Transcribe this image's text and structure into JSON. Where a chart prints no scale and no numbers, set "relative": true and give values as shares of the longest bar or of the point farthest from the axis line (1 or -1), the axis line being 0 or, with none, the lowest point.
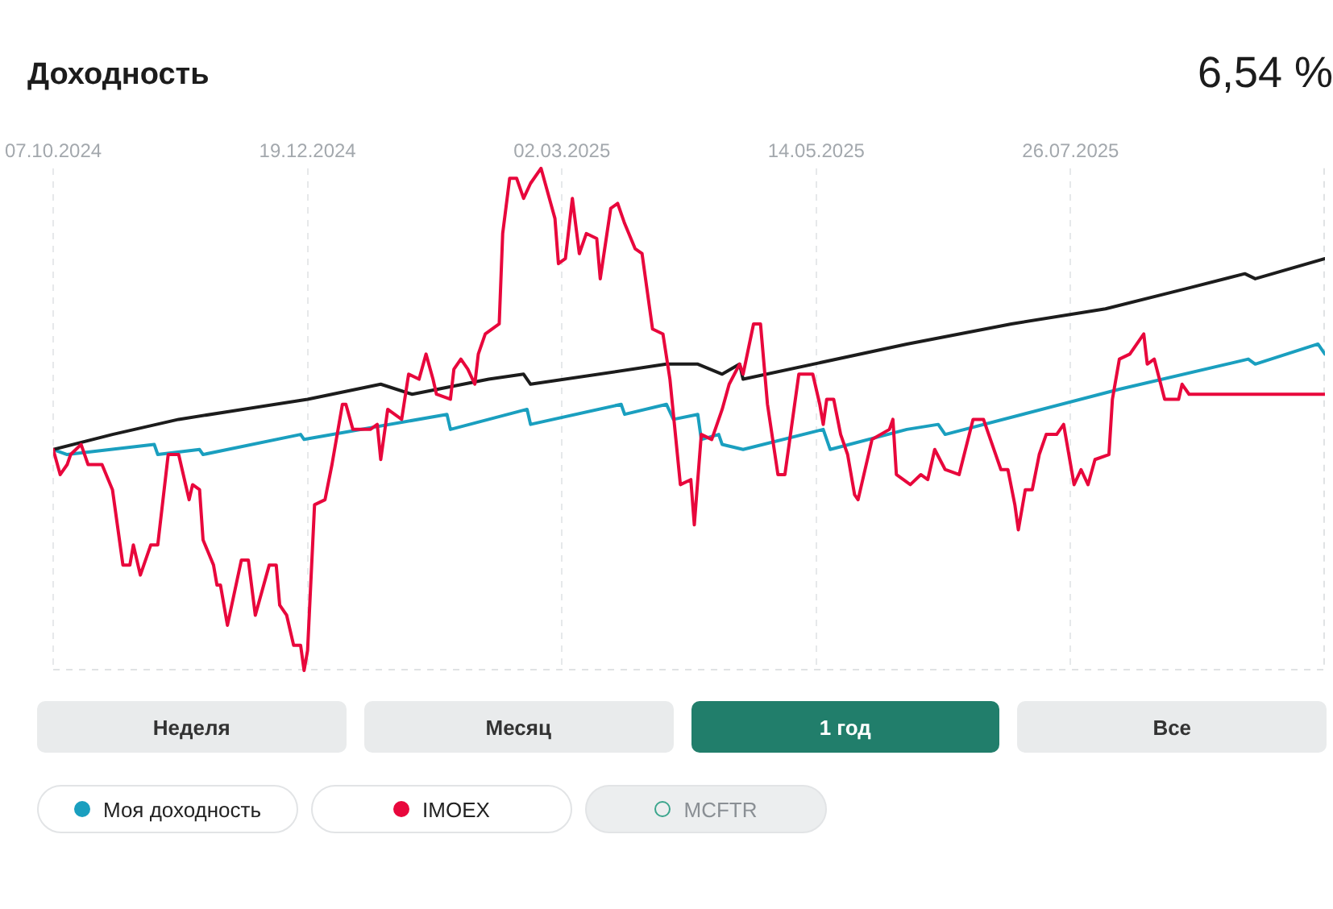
{
  "chart_data": {
    "type": "line",
    "title": "Доходность",
    "subtitle": "6,54 %",
    "relative": true,
    "grid": "x",
    "legend": "bottom",
    "marker": "none",
    "line_style": "solid",
    "xlim": [
      "2024-10-07",
      "2025-10-07"
    ],
    "xticks": [
      {
        "value": "2024-10-07",
        "label": "07.10.2024"
      },
      {
        "value": "2024-12-19",
        "label": "19.12.2024"
      },
      {
        "value": "2025-03-02",
        "label": "02.03.2025"
      },
      {
        "value": "2025-05-14",
        "label": "14.05.2025"
      },
      {
        "value": "2025-07-26",
        "label": "26.07.2025"
      }
    ],
    "annotations": [
      "Неделя",
      "Месяц",
      "1 год",
      "Все",
      "MCFTR"
    ],
    "series": [
      {
        "name": "Моя доходность",
        "color": "#1a9fbf",
        "x": [
          "2024-10-07",
          "2024-10-11",
          "2024-11-05",
          "2024-11-06",
          "2024-11-18",
          "2024-11-19",
          "2024-12-17",
          "2024-12-18",
          "2025-01-28",
          "2025-01-29",
          "2025-02-09",
          "2025-02-20",
          "2025-02-21",
          "2025-03-19",
          "2025-03-20",
          "2025-04-01",
          "2025-04-03",
          "2025-04-10",
          "2025-04-11",
          "2025-04-16",
          "2025-04-17",
          "2025-04-23",
          "2025-05-16",
          "2025-05-18",
          "2025-06-09",
          "2025-06-18",
          "2025-06-20",
          "2025-08-09",
          "2025-09-15",
          "2025-09-17",
          "2025-10-05",
          "2025-10-07"
        ],
        "values": [
          0.44,
          0.43,
          0.45,
          0.43,
          0.44,
          0.43,
          0.47,
          0.46,
          0.51,
          0.48,
          0.5,
          0.52,
          0.49,
          0.53,
          0.51,
          0.53,
          0.5,
          0.51,
          0.46,
          0.47,
          0.45,
          0.44,
          0.48,
          0.44,
          0.48,
          0.49,
          0.47,
          0.56,
          0.62,
          0.61,
          0.65,
          0.63
        ]
      },
      {
        "color": "#1c1c1c",
        "x": [
          "2024-10-07",
          "2024-10-24",
          "2024-11-12",
          "2024-12-19",
          "2025-01-09",
          "2025-01-18",
          "2025-02-09",
          "2025-02-19",
          "2025-02-21",
          "2025-04-01",
          "2025-04-10",
          "2025-04-17",
          "2025-04-22",
          "2025-04-23",
          "2025-06-09",
          "2025-07-09",
          "2025-08-05",
          "2025-08-28",
          "2025-09-14",
          "2025-09-17",
          "2025-10-07"
        ],
        "values": [
          0.44,
          0.47,
          0.5,
          0.54,
          0.57,
          0.55,
          0.58,
          0.59,
          0.57,
          0.61,
          0.61,
          0.59,
          0.61,
          0.58,
          0.65,
          0.69,
          0.72,
          0.76,
          0.79,
          0.78,
          0.82
        ]
      },
      {
        "name": "IMOEX",
        "color": "#e8073c",
        "x": [
          "2024-10-07",
          "2024-10-09",
          "2024-10-11",
          "2024-10-12",
          "2024-10-15",
          "2024-10-17",
          "2024-10-21",
          "2024-10-24",
          "2024-10-27",
          "2024-10-29",
          "2024-10-30",
          "2024-11-01",
          "2024-11-04",
          "2024-11-06",
          "2024-11-09",
          "2024-11-12",
          "2024-11-13",
          "2024-11-15",
          "2024-11-16",
          "2024-11-18",
          "2024-11-19",
          "2024-11-22",
          "2024-11-23",
          "2024-11-24",
          "2024-11-26",
          "2024-11-30",
          "2024-12-02",
          "2024-12-04",
          "2024-12-08",
          "2024-12-10",
          "2024-12-11",
          "2024-12-13",
          "2024-12-15",
          "2024-12-17",
          "2024-12-18",
          "2024-12-19",
          "2024-12-21",
          "2024-12-24",
          "2024-12-26",
          "2024-12-29",
          "2024-12-30",
          "2025-01-01",
          "2025-01-06",
          "2025-01-08",
          "2025-01-09",
          "2025-01-11",
          "2025-01-15",
          "2025-01-17",
          "2025-01-20",
          "2025-01-22",
          "2025-01-24",
          "2025-01-25",
          "2025-01-29",
          "2025-01-30",
          "2025-02-01",
          "2025-02-03",
          "2025-02-05",
          "2025-02-06",
          "2025-02-08",
          "2025-02-12",
          "2025-02-13",
          "2025-02-15",
          "2025-02-17",
          "2025-02-19",
          "2025-02-21",
          "2025-02-24",
          "2025-02-28",
          "2025-03-01",
          "2025-03-03",
          "2025-03-05",
          "2025-03-07",
          "2025-03-09",
          "2025-03-12",
          "2025-03-13",
          "2025-03-16",
          "2025-03-18",
          "2025-03-20",
          "2025-03-23",
          "2025-03-25",
          "2025-03-28",
          "2025-03-31",
          "2025-04-02",
          "2025-04-05",
          "2025-04-08",
          "2025-04-09",
          "2025-04-11",
          "2025-04-14",
          "2025-04-17",
          "2025-04-19",
          "2025-04-22",
          "2025-04-23",
          "2025-04-26",
          "2025-04-28",
          "2025-04-30",
          "2025-05-03",
          "2025-05-05",
          "2025-05-09",
          "2025-05-13",
          "2025-05-15",
          "2025-05-16",
          "2025-05-17",
          "2025-05-19",
          "2025-05-21",
          "2025-05-23",
          "2025-05-25",
          "2025-05-26",
          "2025-05-30",
          "2025-06-04",
          "2025-06-05",
          "2025-06-06",
          "2025-06-10",
          "2025-06-13",
          "2025-06-15",
          "2025-06-17",
          "2025-06-20",
          "2025-06-24",
          "2025-06-28",
          "2025-07-01",
          "2025-07-03",
          "2025-07-06",
          "2025-07-08",
          "2025-07-10",
          "2025-07-11",
          "2025-07-13",
          "2025-07-15",
          "2025-07-17",
          "2025-07-19",
          "2025-07-22",
          "2025-07-24",
          "2025-07-27",
          "2025-07-29",
          "2025-07-31",
          "2025-08-02",
          "2025-08-06",
          "2025-08-07",
          "2025-08-09",
          "2025-08-12",
          "2025-08-16",
          "2025-08-17",
          "2025-08-19",
          "2025-08-22",
          "2025-08-26",
          "2025-08-27",
          "2025-08-29",
          "2025-10-07"
        ],
        "values": [
          0.44,
          0.39,
          0.41,
          0.43,
          0.45,
          0.41,
          0.41,
          0.36,
          0.21,
          0.21,
          0.25,
          0.19,
          0.25,
          0.25,
          0.43,
          0.43,
          0.4,
          0.34,
          0.37,
          0.36,
          0.26,
          0.21,
          0.17,
          0.17,
          0.09,
          0.22,
          0.22,
          0.11,
          0.21,
          0.21,
          0.13,
          0.11,
          0.05,
          0.05,
          0.0,
          0.04,
          0.33,
          0.34,
          0.41,
          0.53,
          0.53,
          0.48,
          0.48,
          0.49,
          0.42,
          0.52,
          0.5,
          0.59,
          0.58,
          0.63,
          0.58,
          0.55,
          0.54,
          0.6,
          0.62,
          0.6,
          0.57,
          0.63,
          0.67,
          0.69,
          0.87,
          0.98,
          0.98,
          0.94,
          0.97,
          1.0,
          0.9,
          0.81,
          0.82,
          0.94,
          0.83,
          0.87,
          0.86,
          0.78,
          0.92,
          0.93,
          0.89,
          0.84,
          0.83,
          0.68,
          0.67,
          0.58,
          0.37,
          0.38,
          0.29,
          0.47,
          0.46,
          0.52,
          0.57,
          0.61,
          0.59,
          0.69,
          0.69,
          0.53,
          0.39,
          0.39,
          0.59,
          0.59,
          0.53,
          0.49,
          0.54,
          0.54,
          0.47,
          0.43,
          0.35,
          0.34,
          0.46,
          0.48,
          0.5,
          0.39,
          0.37,
          0.39,
          0.38,
          0.44,
          0.4,
          0.39,
          0.5,
          0.5,
          0.46,
          0.4,
          0.4,
          0.33,
          0.28,
          0.36,
          0.36,
          0.43,
          0.47,
          0.47,
          0.49,
          0.37,
          0.4,
          0.37,
          0.42,
          0.43,
          0.54,
          0.62,
          0.63,
          0.67,
          0.61,
          0.62,
          0.54,
          0.54,
          0.57,
          0.55,
          0.55
        ]
      }
    ]
  }
}
